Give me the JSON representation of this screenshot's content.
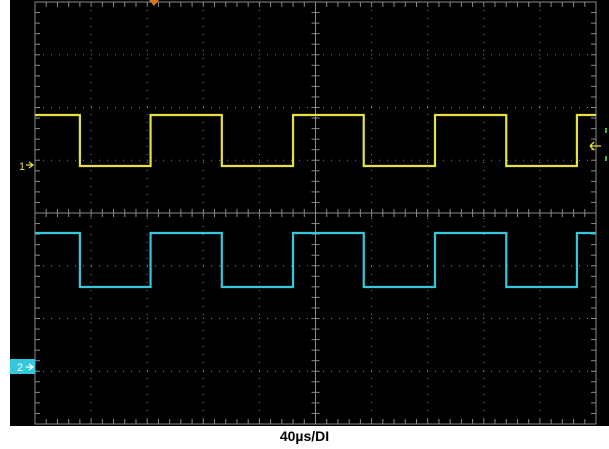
{
  "timebase": {
    "label": "40µs/DI"
  },
  "channels": [
    {
      "id": "1",
      "marker_label": "1",
      "color": "#e6e040",
      "waveform": "square",
      "transitions_div": [
        0.8,
        2.06,
        3.33,
        4.6,
        5.86,
        7.13,
        8.4,
        9.66
      ],
      "start_state": "high"
    },
    {
      "id": "2",
      "marker_label": "2",
      "color": "#33c8dc",
      "waveform": "square",
      "transitions_div": [
        0.8,
        2.06,
        3.33,
        4.6,
        5.86,
        7.13,
        8.4,
        9.66
      ],
      "start_state": "high"
    }
  ],
  "trigger": {
    "level_arrow_icon": "left-arrow-icon",
    "position_icon": "trigger-position-icon",
    "color": "#d2781e"
  },
  "colors": {
    "screen": "#000000",
    "grid": "#8a8a8a",
    "ch2_marker_bg": "#33c8dc"
  },
  "grid": {
    "horizontal_divisions": 10,
    "vertical_divisions": 8,
    "minor_per_division": 5
  }
}
